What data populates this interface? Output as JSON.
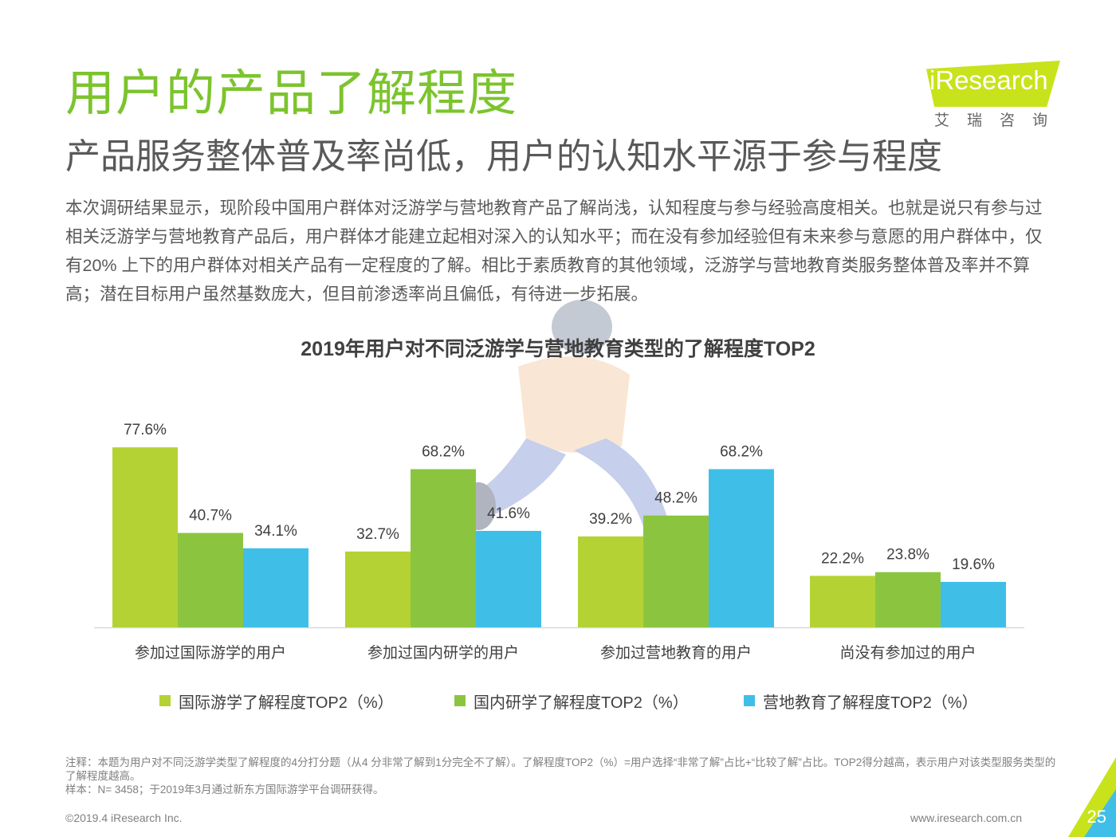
{
  "header": {
    "title": "用户的产品了解程度",
    "subtitle": "产品服务整体普及率尚低，用户的认知水平源于参与程度",
    "body": "本次调研结果显示，现阶段中国用户群体对泛游学与营地教育产品了解尚浅，认知程度与参与经验高度相关。也就是说只有参与过相关泛游学与营地教育产品后，用户群体才能建立起相对深入的认知水平；而在没有参加经验但有未来参与意愿的用户群体中，仅有20% 上下的用户群体对相关产品有一定程度的了解。相比于素质教育的其他领域，泛游学与营地教育类服务整体普及率并不算高；潜在目标用户虽然基数庞大，但目前渗透率尚且偏低，有待进一步拓展。"
  },
  "logo": {
    "brand": "iResearch",
    "sub": "艾瑞咨询"
  },
  "chart_data": {
    "type": "bar",
    "title": "2019年用户对不同泛游学与营地教育类型的了解程度TOP2",
    "categories": [
      "参加过国际游学的用户",
      "参加过国内研学的用户",
      "参加过营地教育的用户",
      "尚没有参加过的用户"
    ],
    "series": [
      {
        "name": "国际游学了解程度TOP2（%）",
        "values": [
          77.6,
          32.7,
          39.2,
          22.2
        ],
        "color": "#b4d234"
      },
      {
        "name": "国内研学了解程度TOP2（%）",
        "values": [
          40.7,
          68.2,
          48.2,
          23.8
        ],
        "color": "#8bc53f"
      },
      {
        "name": "营地教育了解程度TOP2（%）",
        "values": [
          34.1,
          41.6,
          68.2,
          19.6
        ],
        "color": "#3fbfe8"
      }
    ],
    "ylim": [
      0,
      100
    ],
    "grid": false,
    "legend": "bottom"
  },
  "note": {
    "line1": "注释：本题为用户对不同泛游学类型了解程度的4分打分题（从4 分非常了解到1分完全不了解）。了解程度TOP2（%）=用户选择“非常了解”占比+“比较了解”占比。TOP2得分越高，表示用户对该类型服务类型的了解程度越高。",
    "line2": "样本：N= 3458；于2019年3月通过新东方国际游学平台调研获得。"
  },
  "footer": {
    "copyright": "©2019.4 iResearch Inc.",
    "url": "www.iresearch.com.cn",
    "page": "25"
  }
}
